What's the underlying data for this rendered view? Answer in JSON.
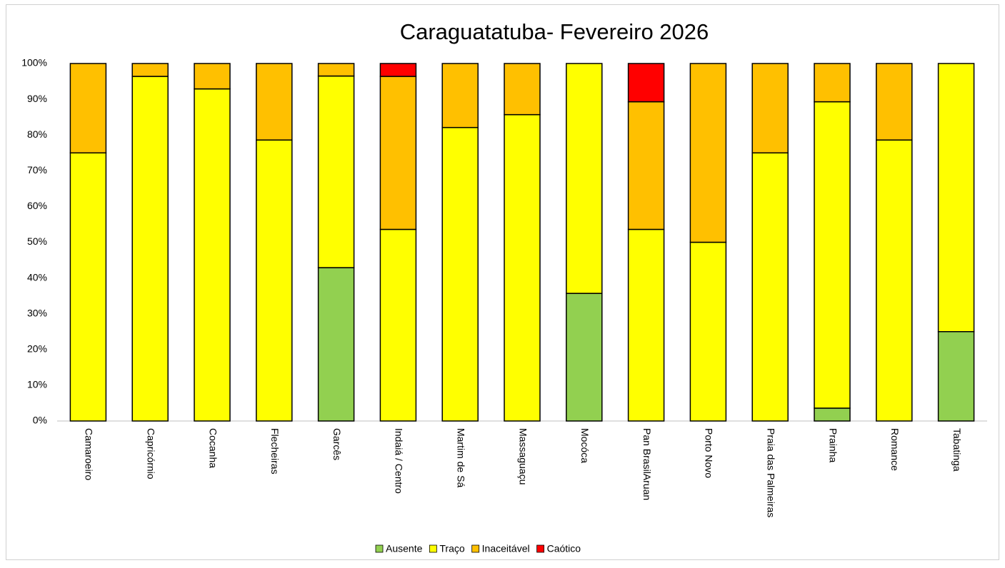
{
  "chart_data": {
    "type": "stacked_bar",
    "title": "Caraguatatuba- Fevereiro 2026",
    "categories": [
      "Camaroeiro",
      "Capricórnio",
      "Cocanha",
      "Flecheiras",
      "Garcês",
      "Indaiá / Centro",
      "Martim de Sá",
      "Massaguaçu",
      "Mocóca",
      "Pan BrasilAruan",
      "Porto Novo",
      "Praia das Palmeiras",
      "Prainha",
      "Romance",
      "Tabatinga"
    ],
    "series": [
      {
        "name": "Ausente",
        "color": "#92d050",
        "values": [
          0,
          0,
          0,
          0,
          42.9,
          0,
          0,
          0,
          35.7,
          0,
          0,
          0,
          3.6,
          0,
          25
        ]
      },
      {
        "name": "Traço",
        "color": "#ffff00",
        "values": [
          75,
          96.4,
          92.9,
          78.6,
          53.6,
          53.6,
          82.1,
          85.7,
          64.3,
          53.6,
          50,
          75,
          85.7,
          78.6,
          75
        ]
      },
      {
        "name": "Inaceitável",
        "color": "#ffc000",
        "values": [
          25,
          3.6,
          7.1,
          21.4,
          3.5,
          42.8,
          17.9,
          14.3,
          0,
          35.7,
          50,
          25,
          10.7,
          21.4,
          0
        ]
      },
      {
        "name": "Caótico",
        "color": "#ff0000",
        "values": [
          0,
          0,
          0,
          0,
          0,
          3.6,
          0,
          0,
          0,
          10.7,
          0,
          0,
          0,
          0,
          0
        ]
      }
    ],
    "ylim": [
      0,
      100
    ],
    "yticks": [
      {
        "value": 0,
        "label": "0%"
      },
      {
        "value": 10,
        "label": "10%"
      },
      {
        "value": 20,
        "label": "20%"
      },
      {
        "value": 30,
        "label": "30%"
      },
      {
        "value": 40,
        "label": "40%"
      },
      {
        "value": 50,
        "label": "50%"
      },
      {
        "value": 60,
        "label": "60%"
      },
      {
        "value": 70,
        "label": "70%"
      },
      {
        "value": 80,
        "label": "80%"
      },
      {
        "value": 90,
        "label": "90%"
      },
      {
        "value": 100,
        "label": "100%"
      }
    ],
    "legend": "bottom"
  }
}
